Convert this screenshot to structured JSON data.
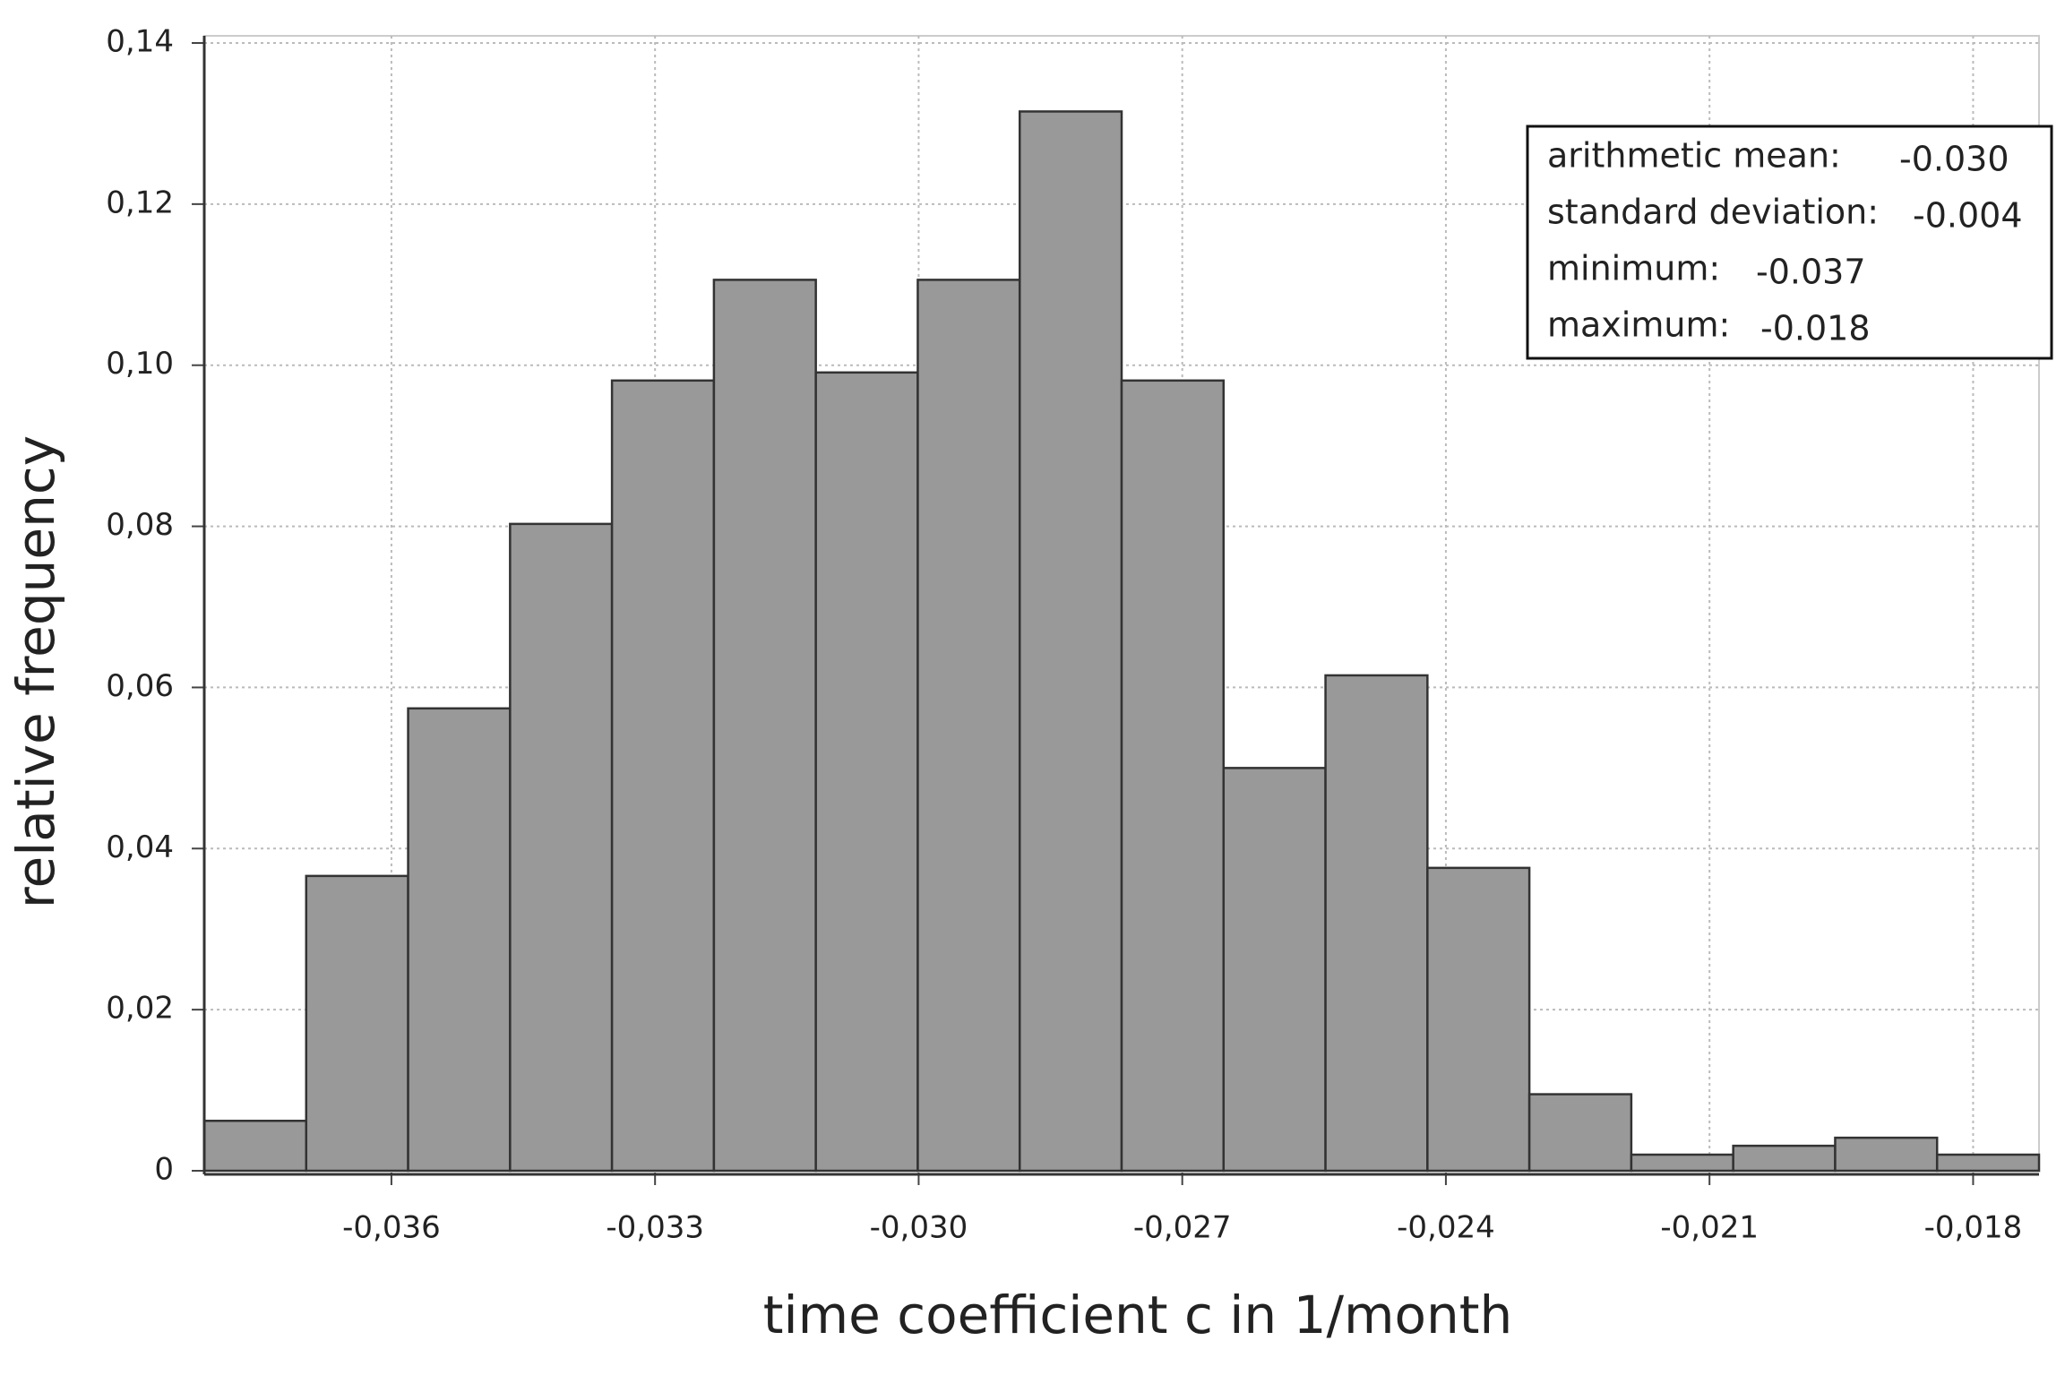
{
  "chart_data": {
    "type": "histogram",
    "xlabel": "time coefficient c in 1/month",
    "ylabel": "relative frequency",
    "bins": [
      -0.03813,
      -0.03697,
      -0.03581,
      -0.03465,
      -0.03349,
      -0.03233,
      -0.03117,
      -0.03001,
      -0.02885,
      -0.02769,
      -0.02653,
      -0.02537,
      -0.02421,
      -0.02305,
      -0.02189,
      -0.02073,
      -0.01957,
      -0.01841,
      -0.01725
    ],
    "values": [
      0.0062,
      0.0366,
      0.0574,
      0.0803,
      0.0981,
      0.1106,
      0.0991,
      0.1106,
      0.1315,
      0.0981,
      0.05,
      0.0615,
      0.0376,
      0.0095,
      0.002,
      0.0031,
      0.0041,
      0.002
    ],
    "color": "#999999",
    "xlim": [
      -0.03813,
      -0.01725
    ],
    "ylim": [
      0,
      0.14
    ],
    "xticks": [
      {
        "value": -0.036,
        "label": "-0,036"
      },
      {
        "value": -0.033,
        "label": "-0,033"
      },
      {
        "value": -0.03,
        "label": "-0,030"
      },
      {
        "value": -0.027,
        "label": "-0,027"
      },
      {
        "value": -0.024,
        "label": "-0,024"
      },
      {
        "value": -0.021,
        "label": "-0,021"
      },
      {
        "value": -0.018,
        "label": "-0,018"
      }
    ],
    "yticks": [
      0,
      {
        "value": 0.02,
        "label": "0,02"
      },
      {
        "value": 0.04,
        "label": "0,04"
      },
      {
        "value": 0.06,
        "label": "0,06"
      },
      {
        "value": 0.08,
        "label": "0,08"
      },
      {
        "value": 0.1,
        "label": "0,10"
      },
      {
        "value": 0.12,
        "label": "0,12"
      },
      {
        "value": 0.14,
        "label": "0,14"
      }
    ],
    "grid": true,
    "stats": [
      {
        "label": "arithmetic mean:",
        "value": "-0.030"
      },
      {
        "label": "standard deviation:",
        "value": "-0.004"
      },
      {
        "label": "minimum:",
        "value": "-0.037"
      },
      {
        "label": "maximum:",
        "value": "-0.018"
      }
    ]
  }
}
